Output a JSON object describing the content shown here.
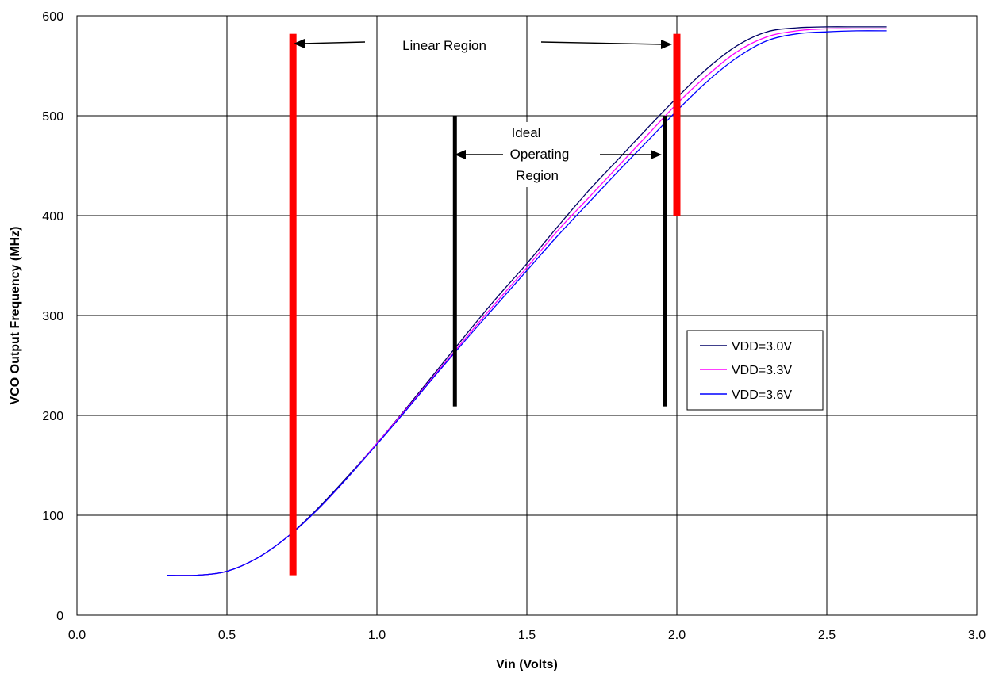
{
  "chart_data": {
    "type": "line",
    "title": "",
    "xlabel": "Vin (Volts)",
    "ylabel": "VCO Output Frequency (MHz)",
    "xlim": [
      0.0,
      3.0
    ],
    "ylim": [
      0,
      600
    ],
    "x_ticks": [
      "0.0",
      "0.5",
      "1.0",
      "1.5",
      "2.0",
      "2.5",
      "3.0"
    ],
    "y_ticks": [
      "0",
      "100",
      "200",
      "300",
      "400",
      "500",
      "600"
    ],
    "grid": true,
    "legend_position": "right",
    "x": [
      0.3,
      0.4,
      0.5,
      0.6,
      0.7,
      0.8,
      0.9,
      1.0,
      1.1,
      1.2,
      1.3,
      1.4,
      1.5,
      1.6,
      1.7,
      1.8,
      1.9,
      2.0,
      2.1,
      2.2,
      2.3,
      2.4,
      2.5,
      2.6,
      2.7
    ],
    "series": [
      {
        "name": "VDD=3.0V",
        "color": "#000066",
        "values": [
          40,
          40,
          44,
          57,
          78,
          106,
          138,
          172,
          208,
          245,
          282,
          318,
          352,
          388,
          423,
          455,
          487,
          518,
          547,
          570,
          584,
          588,
          589,
          589,
          589
        ]
      },
      {
        "name": "VDD=3.3V",
        "color": "#ff00ff",
        "values": [
          40,
          40,
          44,
          57,
          78,
          105,
          137,
          172,
          207,
          243,
          279,
          314,
          348,
          384,
          416,
          448,
          480,
          512,
          540,
          564,
          579,
          585,
          587,
          587,
          587
        ]
      },
      {
        "name": "VDD=3.6V",
        "color": "#0000ff",
        "values": [
          40,
          40,
          44,
          57,
          78,
          105,
          137,
          171,
          206,
          242,
          277,
          311,
          345,
          379,
          411,
          443,
          474,
          505,
          534,
          558,
          575,
          582,
          584,
          585,
          585
        ]
      }
    ],
    "markers": [
      {
        "kind": "linear-region",
        "color": "#ff0000",
        "x": 0.72,
        "y_min": 40,
        "y_max": 582
      },
      {
        "kind": "linear-region",
        "color": "#ff0000",
        "x": 2.0,
        "y_min": 400,
        "y_max": 582
      },
      {
        "kind": "ideal-region",
        "color": "#000000",
        "x": 1.26,
        "y_min": 209,
        "y_max": 500
      },
      {
        "kind": "ideal-region",
        "color": "#000000",
        "x": 1.96,
        "y_min": 209,
        "y_max": 500
      }
    ],
    "annotations": {
      "linear_region": "Linear Region",
      "ideal_line1": "Ideal",
      "ideal_line2": "Operating",
      "ideal_line3": "Region"
    }
  }
}
